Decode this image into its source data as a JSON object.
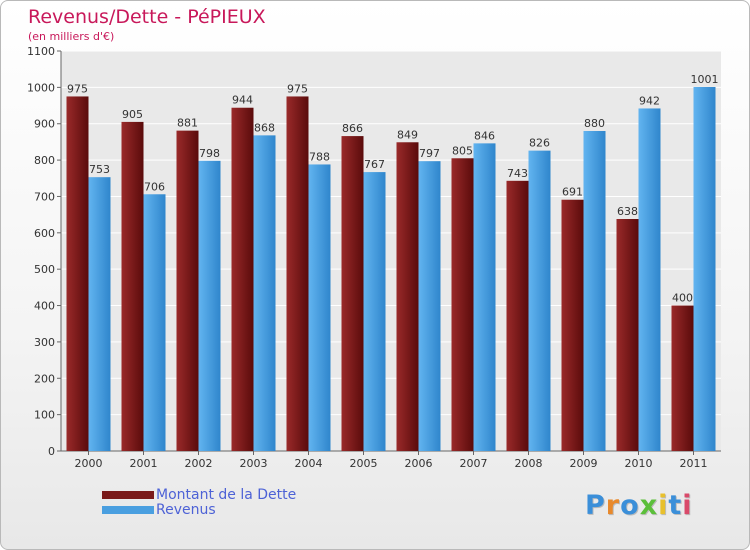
{
  "chart_data": {
    "type": "bar",
    "title": "Revenus/Dette - PéPIEUX",
    "subtitle": "(en milliers d'€)",
    "categories": [
      "2000",
      "2001",
      "2002",
      "2003",
      "2004",
      "2005",
      "2006",
      "2007",
      "2008",
      "2009",
      "2010",
      "2011"
    ],
    "series": [
      {
        "name": "Montant de la Dette",
        "color": "#7a1a1a",
        "values": [
          975,
          905,
          881,
          944,
          975,
          866,
          849,
          805,
          743,
          691,
          638,
          400
        ]
      },
      {
        "name": "Revenus",
        "color": "#4a9fe0",
        "values": [
          753,
          706,
          798,
          868,
          788,
          767,
          797,
          846,
          826,
          880,
          942,
          1001
        ]
      }
    ],
    "ylim": [
      0,
      1100
    ],
    "yticks": [
      0,
      100,
      200,
      300,
      400,
      500,
      600,
      700,
      800,
      900,
      1000,
      1100
    ],
    "grid": true,
    "legend": "bottom-left"
  },
  "logo": {
    "text": "Proxiti",
    "letter_colors": [
      "#3b8fd9",
      "#e8892c",
      "#3b8fd9",
      "#5bbf3a",
      "#e8c02c",
      "#3b8fd9",
      "#d94a6a"
    ]
  }
}
